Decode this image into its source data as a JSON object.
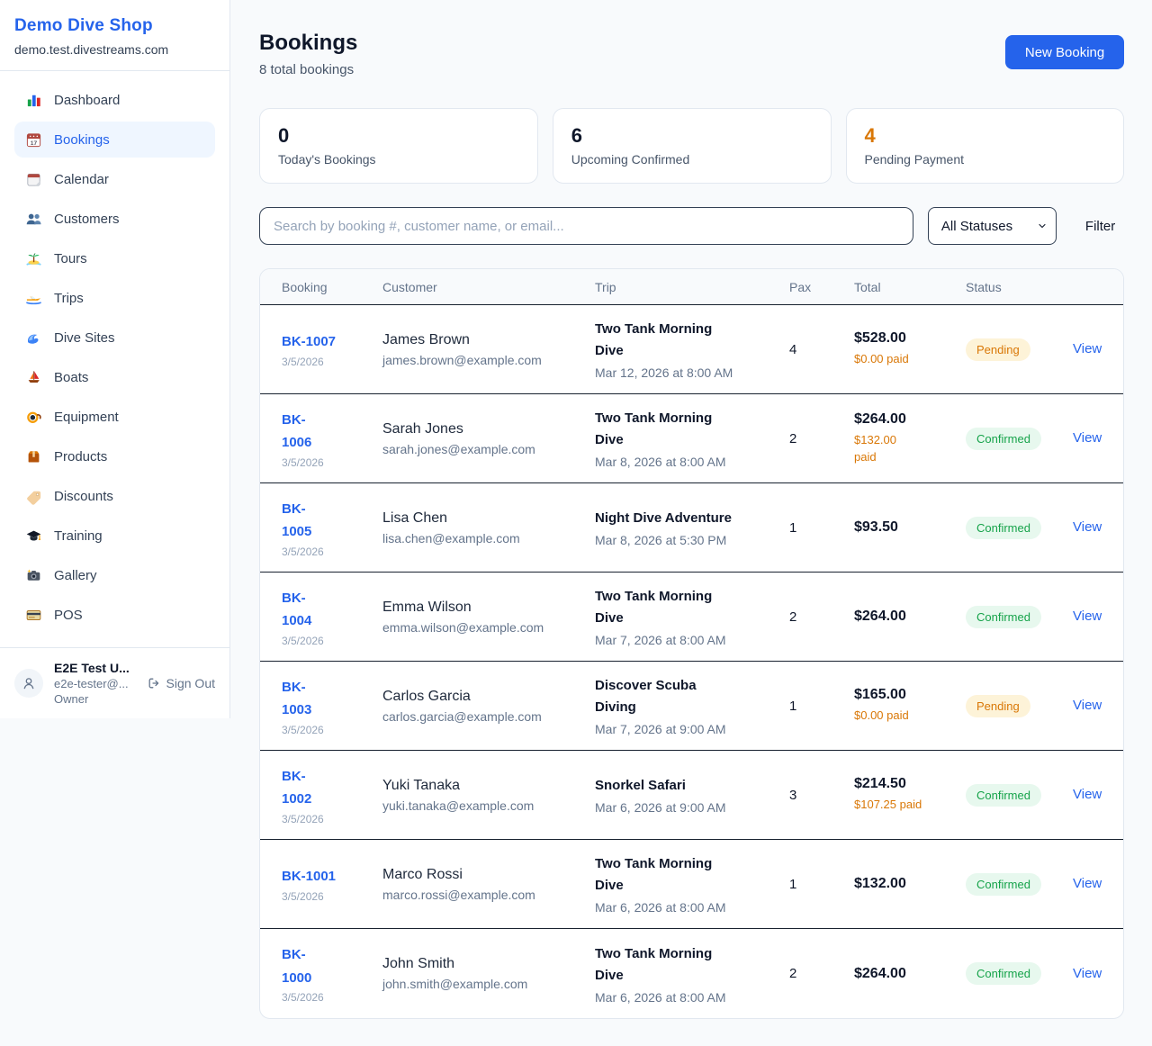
{
  "sidebar": {
    "title": "Demo Dive Shop",
    "subdomain": "demo.test.divestreams.com",
    "items": [
      {
        "label": "Dashboard",
        "icon": "bar-chart-icon",
        "active": false
      },
      {
        "label": "Bookings",
        "icon": "bookings-calendar-icon",
        "active": true
      },
      {
        "label": "Calendar",
        "icon": "tear-off-calendar-icon",
        "active": false
      },
      {
        "label": "Customers",
        "icon": "people-icon",
        "active": false
      },
      {
        "label": "Tours",
        "icon": "island-icon",
        "active": false
      },
      {
        "label": "Trips",
        "icon": "speedboat-icon",
        "active": false
      },
      {
        "label": "Dive Sites",
        "icon": "wave-icon",
        "active": false
      },
      {
        "label": "Boats",
        "icon": "sailboat-icon",
        "active": false
      },
      {
        "label": "Equipment",
        "icon": "diving-mask-icon",
        "active": false
      },
      {
        "label": "Products",
        "icon": "package-icon",
        "active": false
      },
      {
        "label": "Discounts",
        "icon": "tag-icon",
        "active": false
      },
      {
        "label": "Training",
        "icon": "graduation-cap-icon",
        "active": false
      },
      {
        "label": "Gallery",
        "icon": "camera-icon",
        "active": false
      },
      {
        "label": "POS",
        "icon": "credit-card-icon",
        "active": false
      }
    ],
    "user": {
      "name": "E2E Test U...",
      "email": "e2e-tester@...",
      "role": "Owner",
      "sign_out_label": "Sign Out"
    }
  },
  "header": {
    "title": "Bookings",
    "subtitle": "8 total bookings",
    "new_booking_label": "New Booking"
  },
  "stats": [
    {
      "value": "0",
      "label": "Today's Bookings",
      "accent": false
    },
    {
      "value": "6",
      "label": "Upcoming Confirmed",
      "accent": false
    },
    {
      "value": "4",
      "label": "Pending Payment",
      "accent": true
    }
  ],
  "filters": {
    "search_placeholder": "Search by booking #, customer name, or email...",
    "status_selected": "All Statuses",
    "filter_label": "Filter"
  },
  "table": {
    "headers": [
      "Booking",
      "Customer",
      "Trip",
      "Pax",
      "Total",
      "Status"
    ],
    "rows": [
      {
        "booking_id": "BK-1007",
        "booking_date": "3/5/2026",
        "customer_name": "James Brown",
        "customer_email": "james.brown@example.com",
        "trip_name": "Two Tank Morning\nDive",
        "trip_datetime": "Mar 12, 2026 at 8:00 AM",
        "pax": "4",
        "total": "$528.00",
        "paid": "$0.00 paid",
        "status": "Pending",
        "action": "View"
      },
      {
        "booking_id": "BK-\n1006",
        "booking_date": "3/5/2026",
        "customer_name": "Sarah Jones",
        "customer_email": "sarah.jones@example.com",
        "trip_name": "Two Tank Morning\nDive",
        "trip_datetime": "Mar 8, 2026 at 8:00 AM",
        "pax": "2",
        "total": "$264.00",
        "paid": "$132.00\npaid",
        "status": "Confirmed",
        "action": "View"
      },
      {
        "booking_id": "BK-\n1005",
        "booking_date": "3/5/2026",
        "customer_name": "Lisa Chen",
        "customer_email": "lisa.chen@example.com",
        "trip_name": "Night Dive Adventure",
        "trip_datetime": "Mar 8, 2026 at 5:30 PM",
        "pax": "1",
        "total": "$93.50",
        "paid": null,
        "status": "Confirmed",
        "action": "View"
      },
      {
        "booking_id": "BK-\n1004",
        "booking_date": "3/5/2026",
        "customer_name": "Emma Wilson",
        "customer_email": "emma.wilson@example.com",
        "trip_name": "Two Tank Morning\nDive",
        "trip_datetime": "Mar 7, 2026 at 8:00 AM",
        "pax": "2",
        "total": "$264.00",
        "paid": null,
        "status": "Confirmed",
        "action": "View"
      },
      {
        "booking_id": "BK-\n1003",
        "booking_date": "3/5/2026",
        "customer_name": "Carlos Garcia",
        "customer_email": "carlos.garcia@example.com",
        "trip_name": "Discover Scuba\nDiving",
        "trip_datetime": "Mar 7, 2026 at 9:00 AM",
        "pax": "1",
        "total": "$165.00",
        "paid": "$0.00 paid",
        "status": "Pending",
        "action": "View"
      },
      {
        "booking_id": "BK-\n1002",
        "booking_date": "3/5/2026",
        "customer_name": "Yuki Tanaka",
        "customer_email": "yuki.tanaka@example.com",
        "trip_name": "Snorkel Safari",
        "trip_datetime": "Mar 6, 2026 at 9:00 AM",
        "pax": "3",
        "total": "$214.50",
        "paid": "$107.25 paid",
        "status": "Confirmed",
        "action": "View"
      },
      {
        "booking_id": "BK-1001",
        "booking_date": "3/5/2026",
        "customer_name": "Marco Rossi",
        "customer_email": "marco.rossi@example.com",
        "trip_name": "Two Tank Morning\nDive",
        "trip_datetime": "Mar 6, 2026 at 8:00 AM",
        "pax": "1",
        "total": "$132.00",
        "paid": null,
        "status": "Confirmed",
        "action": "View"
      },
      {
        "booking_id": "BK-\n1000",
        "booking_date": "3/5/2026",
        "customer_name": "John Smith",
        "customer_email": "john.smith@example.com",
        "trip_name": "Two Tank Morning\nDive",
        "trip_datetime": "Mar 6, 2026 at 8:00 AM",
        "pax": "2",
        "total": "$264.00",
        "paid": null,
        "status": "Confirmed",
        "action": "View"
      }
    ]
  },
  "colors": {
    "accent_blue": "#2563eb",
    "active_item_bg": "#eff6ff",
    "pending_text": "#d97706",
    "pending_bg": "#fdf3d8",
    "confirmed_text": "#16a34a",
    "confirmed_bg": "#e7f8ee",
    "paid_orange": "#d97706",
    "page_bg": "#f8fafc",
    "row_divider": "#18212f"
  }
}
